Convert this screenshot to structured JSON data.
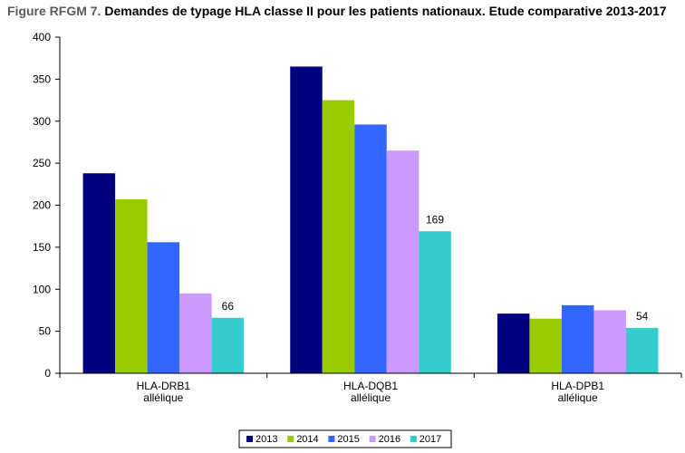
{
  "title": {
    "prefix": "Figure RFGM 7.",
    "main": "Demandes de typage HLA classe II pour les patients nationaux. Etude comparative 2013-2017"
  },
  "chart_data": {
    "type": "bar",
    "title": "Figure RFGM 7. Demandes de typage HLA classe II pour les patients nationaux. Etude comparative 2013-2017",
    "categories": [
      [
        "HLA-DRB1",
        "allélique"
      ],
      [
        "HLA-DQB1",
        "allélique"
      ],
      [
        "HLA-DPB1",
        "allélique"
      ]
    ],
    "series": [
      {
        "name": "2013",
        "color": "#000080",
        "values": [
          238,
          365,
          71
        ]
      },
      {
        "name": "2014",
        "color": "#99cc00",
        "values": [
          207,
          325,
          65
        ]
      },
      {
        "name": "2015",
        "color": "#3366ff",
        "values": [
          156,
          296,
          81
        ]
      },
      {
        "name": "2016",
        "color": "#cc99ff",
        "values": [
          95,
          265,
          75
        ]
      },
      {
        "name": "2017",
        "color": "#33cccc",
        "values": [
          66,
          169,
          54
        ]
      }
    ],
    "data_labels": [
      {
        "series": 4,
        "category": 0,
        "text": "66"
      },
      {
        "series": 4,
        "category": 1,
        "text": "169"
      },
      {
        "series": 4,
        "category": 2,
        "text": "54"
      }
    ],
    "ylim": [
      0,
      400
    ],
    "yticks": [
      0,
      50,
      100,
      150,
      200,
      250,
      300,
      350,
      400
    ],
    "xlabel": "",
    "ylabel": "",
    "grid": false,
    "legend": "bottom-center"
  }
}
